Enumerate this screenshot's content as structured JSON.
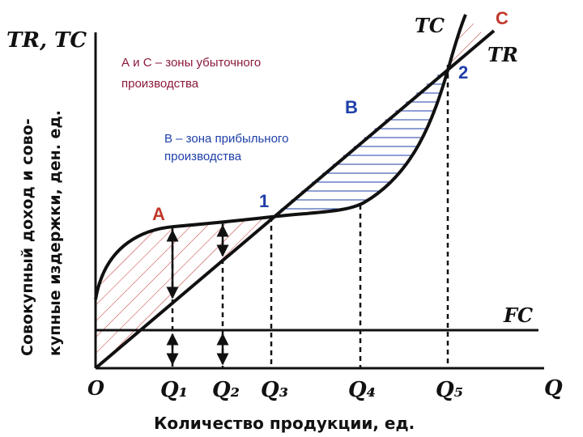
{
  "y_axis": {
    "title": "TR, TC",
    "label_lines": [
      "Совокупный доход и сово-",
      "купные издержки, ден. ед."
    ]
  },
  "x_axis": {
    "title": "Q",
    "label": "Количество продукции, ед.",
    "origin": "O",
    "ticks": [
      "Q₁",
      "Q₂",
      "Q₃",
      "Q₄",
      "Q₅"
    ]
  },
  "curves": {
    "tc": "TC",
    "tr": "TR",
    "fc": "FC"
  },
  "points": {
    "p1": "1",
    "p2": "2"
  },
  "zones": {
    "a": "A",
    "b": "B",
    "c": "C"
  },
  "notes": {
    "loss": [
      "А и С – зоны убыточного",
      "производства"
    ],
    "profit": [
      "В – зона прибыльного",
      "производства"
    ]
  }
}
